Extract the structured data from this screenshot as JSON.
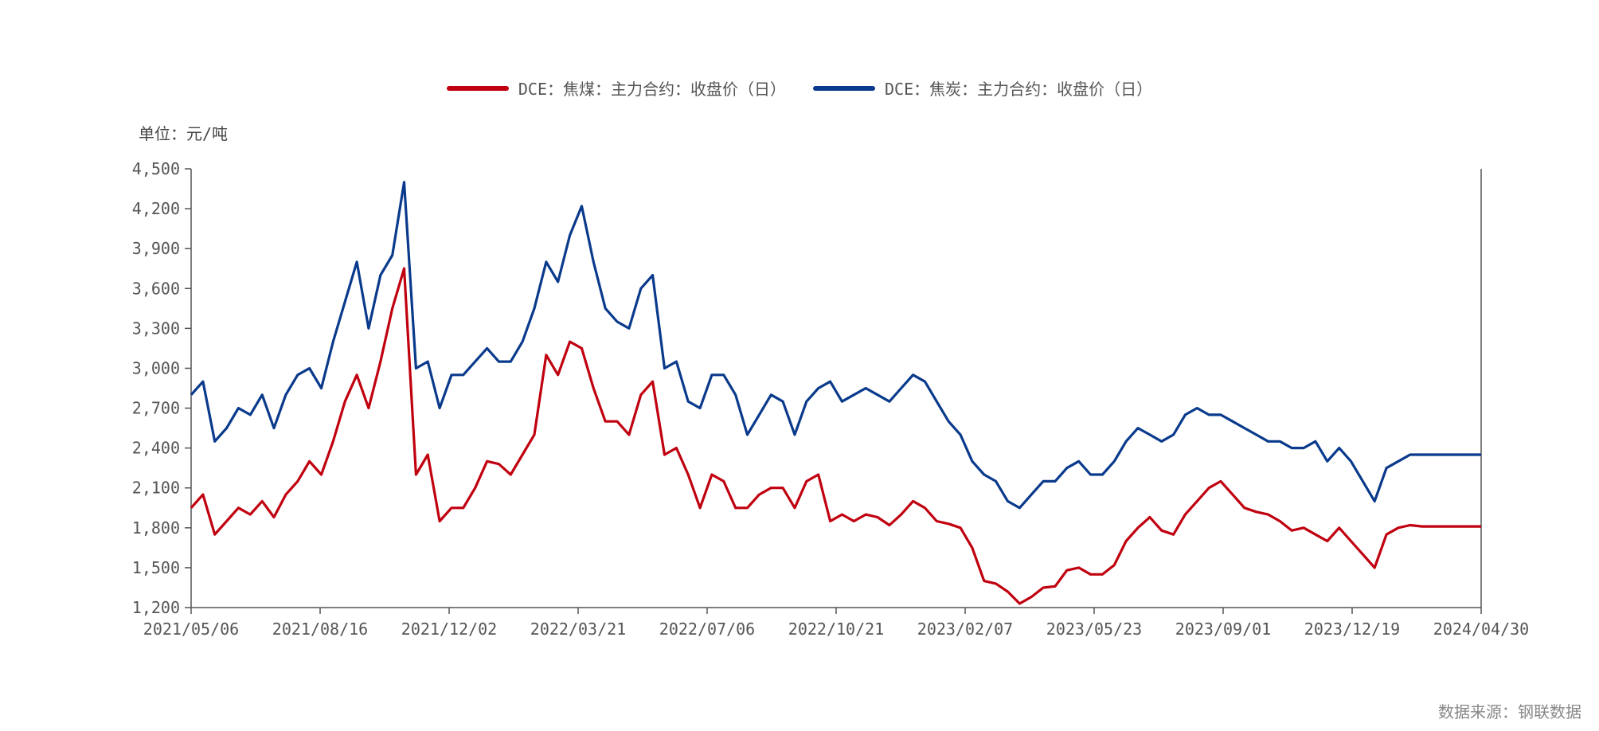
{
  "legend": [
    {
      "label": "DCE：焦煤：主力合约：收盘价（日）",
      "color": "#c0000f"
    },
    {
      "label": "DCE：焦炭：主力合约：收盘价（日）",
      "color": "#0a3a8c"
    }
  ],
  "unit_label": "单位：元/吨",
  "source_label": "数据来源：钢联数据",
  "chart_data": {
    "type": "line",
    "title": "",
    "xlabel": "",
    "ylabel": "元/吨",
    "ylim": [
      1200,
      4500
    ],
    "yticks": [
      1200,
      1500,
      1800,
      2100,
      2400,
      2700,
      3000,
      3300,
      3600,
      3900,
      4200,
      4500
    ],
    "ytick_labels": [
      "1,200",
      "1,500",
      "1,800",
      "2,100",
      "2,400",
      "2,700",
      "3,000",
      "3,300",
      "3,600",
      "3,900",
      "4,200",
      "4,500"
    ],
    "xtick_labels": [
      "2021/05/06",
      "2021/08/16",
      "2021/12/02",
      "2022/03/21",
      "2022/07/06",
      "2022/10/21",
      "2023/02/07",
      "2023/05/23",
      "2023/09/01",
      "2023/12/19",
      "2024/04/30"
    ],
    "x_range": [
      0,
      109
    ],
    "series": [
      {
        "name": "DCE：焦煤：主力合约：收盘价（日）",
        "color": "#c0000f",
        "x": [
          0,
          1,
          2,
          3,
          4,
          5,
          6,
          7,
          8,
          9,
          10,
          11,
          12,
          13,
          14,
          15,
          16,
          17,
          18,
          19,
          20,
          21,
          22,
          23,
          24,
          25,
          26,
          27,
          28,
          29,
          30,
          31,
          32,
          33,
          34,
          35,
          36,
          37,
          38,
          39,
          40,
          41,
          42,
          43,
          44,
          45,
          46,
          47,
          48,
          49,
          50,
          51,
          52,
          53,
          54,
          55,
          56,
          57,
          58,
          59,
          60,
          61,
          62,
          63,
          64,
          65,
          66,
          67,
          68,
          69,
          70,
          71,
          72,
          73,
          74,
          75,
          76,
          77,
          78,
          79,
          80,
          81,
          82,
          83,
          84,
          85,
          86,
          87,
          88,
          89,
          90,
          91,
          92,
          93,
          94,
          95,
          96,
          97,
          98,
          99,
          100,
          101,
          102,
          103,
          104,
          105,
          106,
          107,
          108,
          109
        ],
        "values": [
          1950,
          2050,
          1750,
          1850,
          1950,
          1900,
          2000,
          1880,
          2050,
          2150,
          2300,
          2200,
          2450,
          2750,
          2950,
          2700,
          3050,
          3450,
          3750,
          2200,
          2350,
          1850,
          1950,
          1950,
          2100,
          2300,
          2280,
          2200,
          2350,
          2500,
          3100,
          2950,
          3200,
          3150,
          2850,
          2600,
          2600,
          2500,
          2800,
          2900,
          2350,
          2400,
          2200,
          1950,
          2200,
          2150,
          1950,
          1950,
          2050,
          2100,
          2100,
          1950,
          2150,
          2200,
          1850,
          1900,
          1850,
          1900,
          1880,
          1820,
          1900,
          2000,
          1950,
          1850,
          1830,
          1800,
          1650,
          1400,
          1380,
          1320,
          1230,
          1280,
          1350,
          1360,
          1480,
          1500,
          1450,
          1450,
          1520,
          1700,
          1800,
          1880,
          1780,
          1750,
          1900,
          2000,
          2100,
          2150,
          2050,
          1950,
          1920,
          1900,
          1850,
          1780,
          1800,
          1750,
          1700,
          1800,
          1700,
          1600,
          1500,
          1750,
          1800,
          1820,
          1810,
          1810,
          1810,
          1810,
          1810,
          1810
        ],
        "note": "approximate monthly-resolution trace read off the figure"
      },
      {
        "name": "DCE：焦炭：主力合约：收盘价（日）",
        "color": "#0a3a8c",
        "x": [
          0,
          1,
          2,
          3,
          4,
          5,
          6,
          7,
          8,
          9,
          10,
          11,
          12,
          13,
          14,
          15,
          16,
          17,
          18,
          19,
          20,
          21,
          22,
          23,
          24,
          25,
          26,
          27,
          28,
          29,
          30,
          31,
          32,
          33,
          34,
          35,
          36,
          37,
          38,
          39,
          40,
          41,
          42,
          43,
          44,
          45,
          46,
          47,
          48,
          49,
          50,
          51,
          52,
          53,
          54,
          55,
          56,
          57,
          58,
          59,
          60,
          61,
          62,
          63,
          64,
          65,
          66,
          67,
          68,
          69,
          70,
          71,
          72,
          73,
          74,
          75,
          76,
          77,
          78,
          79,
          80,
          81,
          82,
          83,
          84,
          85,
          86,
          87,
          88,
          89,
          90,
          91,
          92,
          93,
          94,
          95,
          96,
          97,
          98,
          99,
          100,
          101,
          102,
          103,
          104,
          105,
          106,
          107,
          108,
          109
        ],
        "values": [
          2800,
          2900,
          2450,
          2550,
          2700,
          2650,
          2800,
          2550,
          2800,
          2950,
          3000,
          2850,
          3200,
          3500,
          3800,
          3300,
          3700,
          3850,
          4400,
          3000,
          3050,
          2700,
          2950,
          2950,
          3050,
          3150,
          3050,
          3050,
          3200,
          3450,
          3800,
          3650,
          4000,
          4220,
          3800,
          3450,
          3350,
          3300,
          3600,
          3700,
          3000,
          3050,
          2750,
          2700,
          2950,
          2950,
          2800,
          2500,
          2650,
          2800,
          2750,
          2500,
          2750,
          2850,
          2900,
          2750,
          2800,
          2850,
          2800,
          2750,
          2850,
          2950,
          2900,
          2750,
          2600,
          2500,
          2300,
          2200,
          2150,
          2000,
          1950,
          2050,
          2150,
          2150,
          2250,
          2300,
          2200,
          2200,
          2300,
          2450,
          2550,
          2500,
          2450,
          2500,
          2650,
          2700,
          2650,
          2650,
          2600,
          2550,
          2500,
          2450,
          2450,
          2400,
          2400,
          2450,
          2300,
          2400,
          2300,
          2150,
          2000,
          2250,
          2300,
          2350,
          2350,
          2350,
          2350,
          2350,
          2350,
          2350
        ],
        "note": "approximate monthly-resolution trace read off the figure"
      }
    ]
  }
}
